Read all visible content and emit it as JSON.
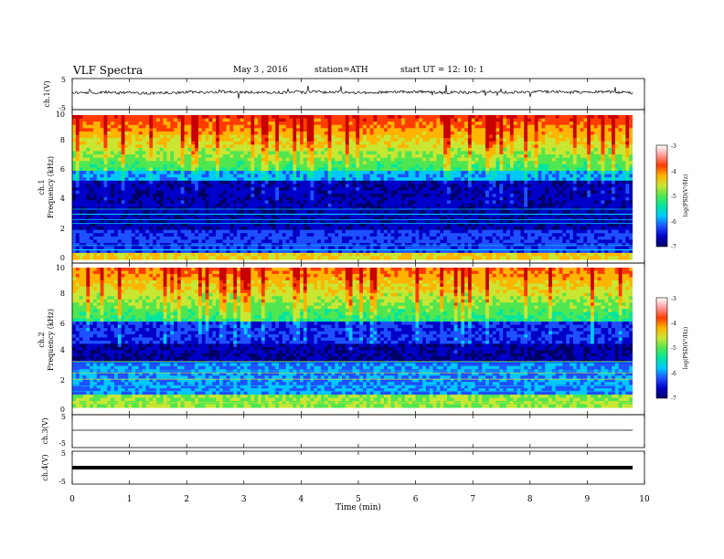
{
  "header": {
    "title": "VLF  Spectra",
    "date": "May 3   , 2016",
    "station": "station=ATH",
    "start": "start  UT  =    12: 10: 1"
  },
  "chart_data": [
    {
      "type": "line",
      "ylabel": "ch.1(V)",
      "yticks": [
        "5",
        "-5"
      ],
      "ylim": [
        -5,
        5
      ],
      "xlim": [
        0,
        10
      ],
      "baseline": 0,
      "description_values": "noisy trace centred near 0 V spanning 0-9.8 min"
    },
    {
      "type": "heatmap",
      "ylabel": "ch.1\nFrequency  (kHz)",
      "ylabel_lines": [
        "ch.1",
        "Frequency  (kHz)"
      ],
      "yticks": [
        "0",
        "2",
        "4",
        "6",
        "8",
        "10"
      ],
      "ylim": [
        0,
        10
      ],
      "xlim": [
        0,
        10
      ],
      "colorbar": {
        "label": "log(PSD(V²/Hz)",
        "ticks": [
          "-3",
          "-4",
          "-5",
          "-6",
          "-7"
        ],
        "range": [
          -7,
          -3
        ]
      }
    },
    {
      "type": "heatmap",
      "ylabel": "ch.2\nFrequency  (kHz)",
      "ylabel_lines": [
        "ch.2",
        "Frequency  (kHz)"
      ],
      "yticks": [
        "0",
        "2",
        "4",
        "6",
        "8",
        "10"
      ],
      "ylim": [
        0,
        10
      ],
      "xlim": [
        0,
        10
      ],
      "colorbar": {
        "label": "log(PSD(V²/Hz)",
        "ticks": [
          "-3",
          "-4",
          "-5",
          "-6",
          "-7"
        ],
        "range": [
          -7,
          -3
        ]
      }
    },
    {
      "type": "line",
      "ylabel": "ch.3(V)",
      "yticks": [
        "5",
        "-5"
      ],
      "ylim": [
        -5,
        5
      ],
      "xlim": [
        0,
        10
      ],
      "baseline": 0
    },
    {
      "type": "line",
      "ylabel": "ch.4(V)",
      "yticks": [
        "5",
        "-5"
      ],
      "ylim": [
        -5,
        5
      ],
      "xlim": [
        0,
        10
      ],
      "baseline": 0
    }
  ],
  "xaxis": {
    "label": "Time  (min)",
    "ticks": [
      "0",
      "1",
      "2",
      "3",
      "4",
      "5",
      "6",
      "7",
      "8",
      "9",
      "10"
    ]
  },
  "colors": {
    "colormap": [
      "#000064",
      "#0000c8",
      "#1e50ff",
      "#00c8ff",
      "#00e6a0",
      "#50e650",
      "#c8e632",
      "#ffb400",
      "#ff3c00",
      "#c80000",
      "#ffffff"
    ]
  }
}
